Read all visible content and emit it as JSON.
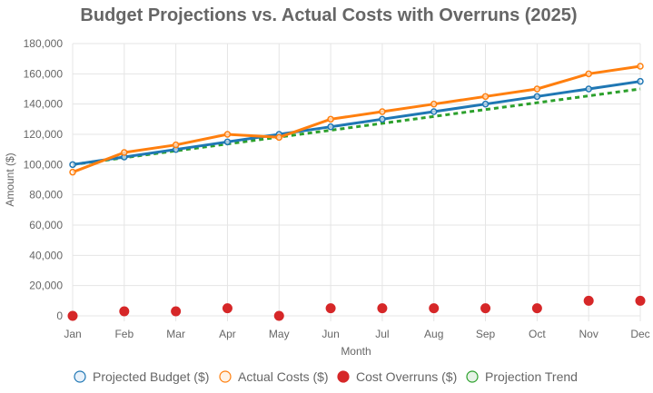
{
  "chart_data": {
    "type": "line",
    "title": "Budget Projections vs. Actual Costs with Overruns (2025)",
    "xlabel": "Month",
    "ylabel": "Amount ($)",
    "categories": [
      "Jan",
      "Feb",
      "Mar",
      "Apr",
      "May",
      "Jun",
      "Jul",
      "Aug",
      "Sep",
      "Oct",
      "Nov",
      "Dec"
    ],
    "y_ticks": [
      "0",
      "20,000",
      "40,000",
      "60,000",
      "80,000",
      "100,000",
      "120,000",
      "140,000",
      "160,000",
      "180,000"
    ],
    "ylim": [
      0,
      180000
    ],
    "grid": true,
    "legend_position": "bottom",
    "series": [
      {
        "name": "Projected Budget ($)",
        "kind": "line",
        "color": "#1f77b4",
        "values": [
          100000,
          105000,
          110000,
          115000,
          120000,
          125000,
          130000,
          135000,
          140000,
          145000,
          150000,
          155000
        ]
      },
      {
        "name": "Actual Costs ($)",
        "kind": "line",
        "color": "#ff7f0e",
        "values": [
          95000,
          108000,
          113000,
          120000,
          118000,
          130000,
          135000,
          140000,
          145000,
          150000,
          160000,
          165000
        ]
      },
      {
        "name": "Cost Overruns ($)",
        "kind": "scatter",
        "color": "#d62728",
        "values": [
          0,
          3000,
          3000,
          5000,
          0,
          5000,
          5000,
          5000,
          5000,
          5000,
          10000,
          10000
        ]
      },
      {
        "name": "Projection Trend",
        "kind": "dashed-line",
        "color": "#2ca02c",
        "values": [
          100000,
          104545,
          109091,
          113636,
          118182,
          122727,
          127273,
          131818,
          136364,
          140909,
          145455,
          150000
        ]
      }
    ]
  }
}
